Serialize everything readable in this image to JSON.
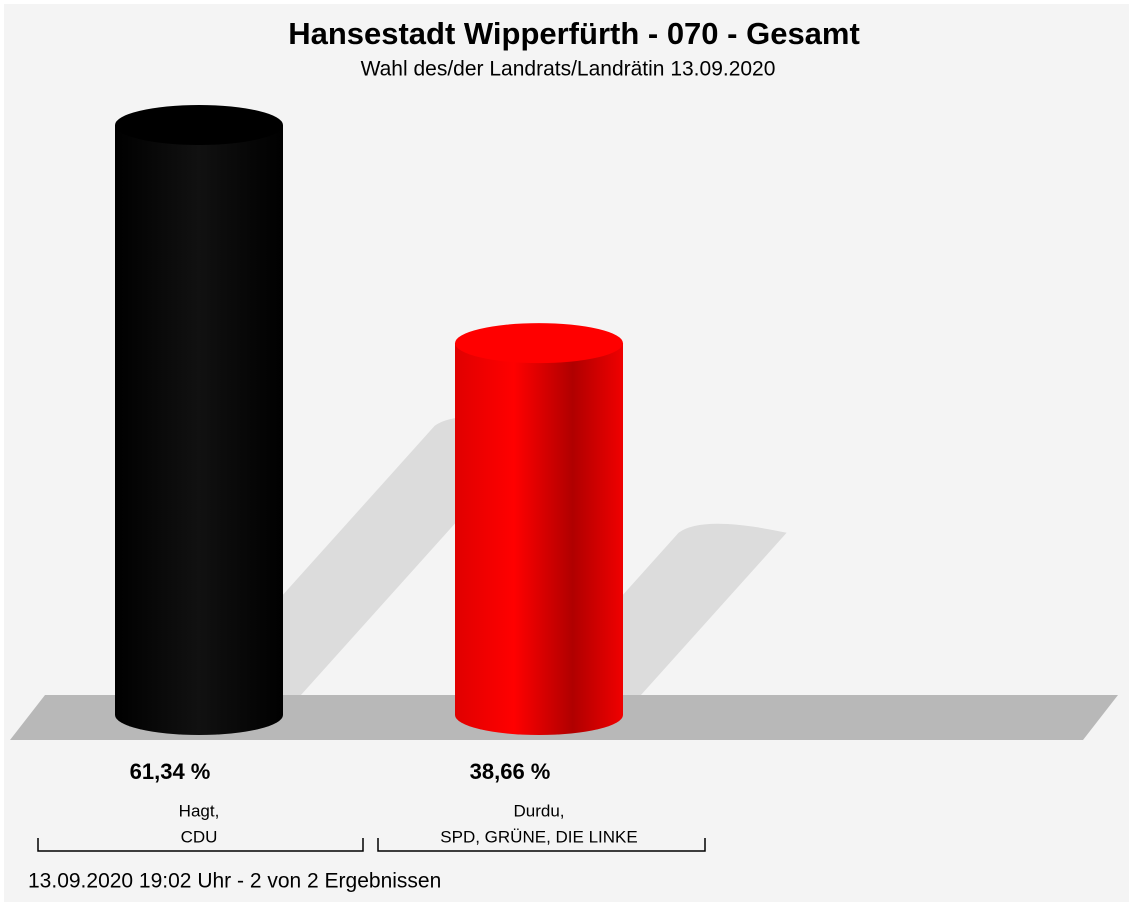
{
  "chart_data": {
    "type": "bar",
    "title": "Hansestadt Wipperfürth - 070 - Gesamt",
    "subtitle": "Wahl des/der Landrats/Landrätin 13.09.2020",
    "categories": [
      [
        "Hagt,",
        "CDU"
      ],
      [
        "Durdu,",
        "SPD, GRÜNE, DIE LINKE"
      ]
    ],
    "values": [
      61.34,
      38.66
    ],
    "value_labels": [
      "61,34 %",
      "38,66 %"
    ],
    "colors": [
      "#000000",
      "#ff0000"
    ],
    "footer": "13.09.2020 19:02 Uhr - 2 von 2 Ergebnissen"
  }
}
